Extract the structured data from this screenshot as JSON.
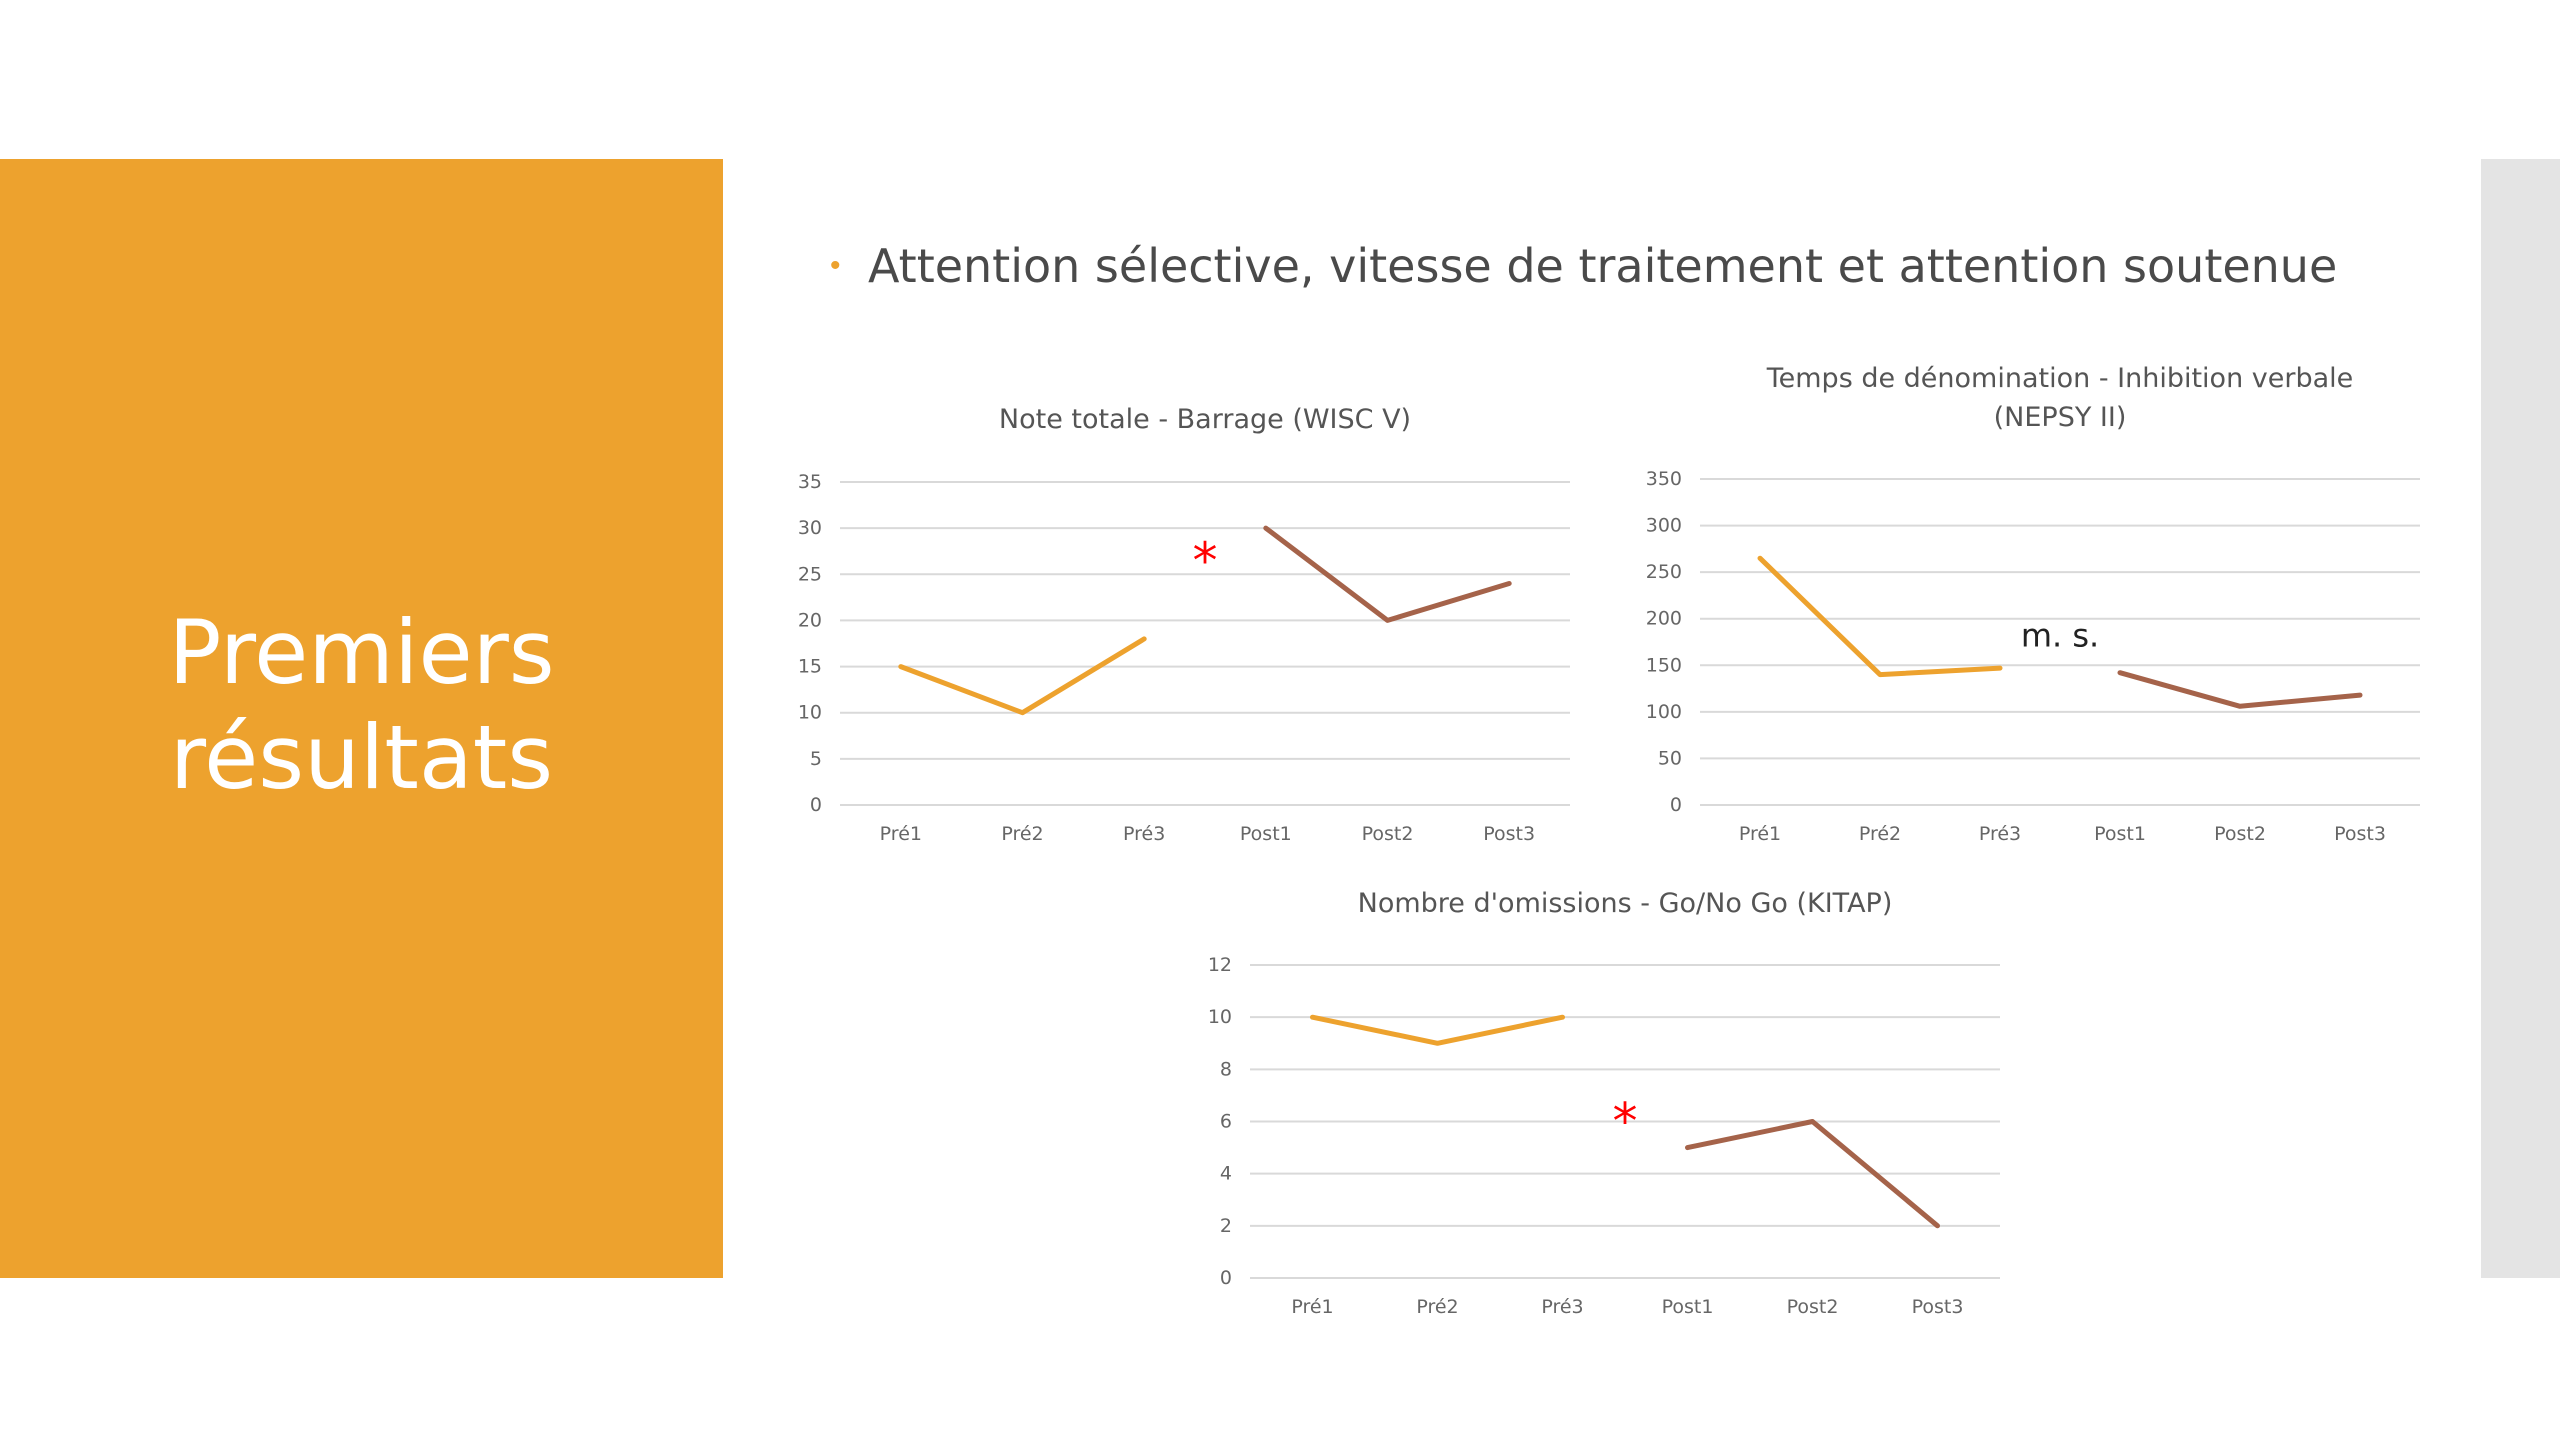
{
  "slide": {
    "title_line1": "Premiers",
    "title_line2": "résultats",
    "bullet": "Attention sélective, vitesse de traitement et attention soutenue"
  },
  "colors": {
    "panel": "#eda22e",
    "pre_series": "#eda22e",
    "post_series": "#a5634a",
    "annotation_star": "#ff0000",
    "side_strip": "#e4e4e4"
  },
  "chart_data": [
    {
      "type": "line",
      "title_lines": [
        "Note totale - Barrage (WISC V)"
      ],
      "categories": [
        "Pré1",
        "Pré2",
        "Pré3",
        "Post1",
        "Post2",
        "Post3"
      ],
      "series": [
        {
          "values": [
            15,
            10,
            18,
            null,
            null,
            null
          ]
        },
        {
          "values": [
            null,
            null,
            null,
            30,
            20,
            24
          ]
        }
      ],
      "ylim": [
        0,
        35
      ],
      "yticks": [
        0,
        5,
        10,
        15,
        20,
        25,
        30,
        35
      ],
      "grid": true,
      "annotation": {
        "text": "*",
        "between": [
          "Pré3",
          "Post1"
        ],
        "y": 27
      }
    },
    {
      "type": "line",
      "title_lines": [
        "Temps de dénomination - Inhibition verbale",
        "(NEPSY II)"
      ],
      "categories": [
        "Pré1",
        "Pré2",
        "Pré3",
        "Post1",
        "Post2",
        "Post3"
      ],
      "series": [
        {
          "values": [
            265,
            140,
            147,
            null,
            null,
            null
          ]
        },
        {
          "values": [
            null,
            null,
            null,
            142,
            106,
            118
          ]
        }
      ],
      "ylim": [
        0,
        350
      ],
      "yticks": [
        0,
        50,
        100,
        150,
        200,
        250,
        300,
        350
      ],
      "grid": true,
      "annotation": {
        "text": "m. s.",
        "between": [
          "Pré3",
          "Post1"
        ],
        "y": 170
      }
    },
    {
      "type": "line",
      "title_lines": [
        "Nombre d'omissions - Go/No Go (KITAP)"
      ],
      "categories": [
        "Pré1",
        "Pré2",
        "Pré3",
        "Post1",
        "Post2",
        "Post3"
      ],
      "series": [
        {
          "values": [
            10,
            9,
            10,
            null,
            null,
            null
          ]
        },
        {
          "values": [
            null,
            null,
            null,
            5,
            6,
            2
          ]
        }
      ],
      "ylim": [
        0,
        12
      ],
      "yticks": [
        0,
        2,
        4,
        6,
        8,
        10,
        12
      ],
      "grid": true,
      "annotation": {
        "text": "*",
        "between": [
          "Pré3",
          "Post1"
        ],
        "y": 6.2
      }
    }
  ]
}
